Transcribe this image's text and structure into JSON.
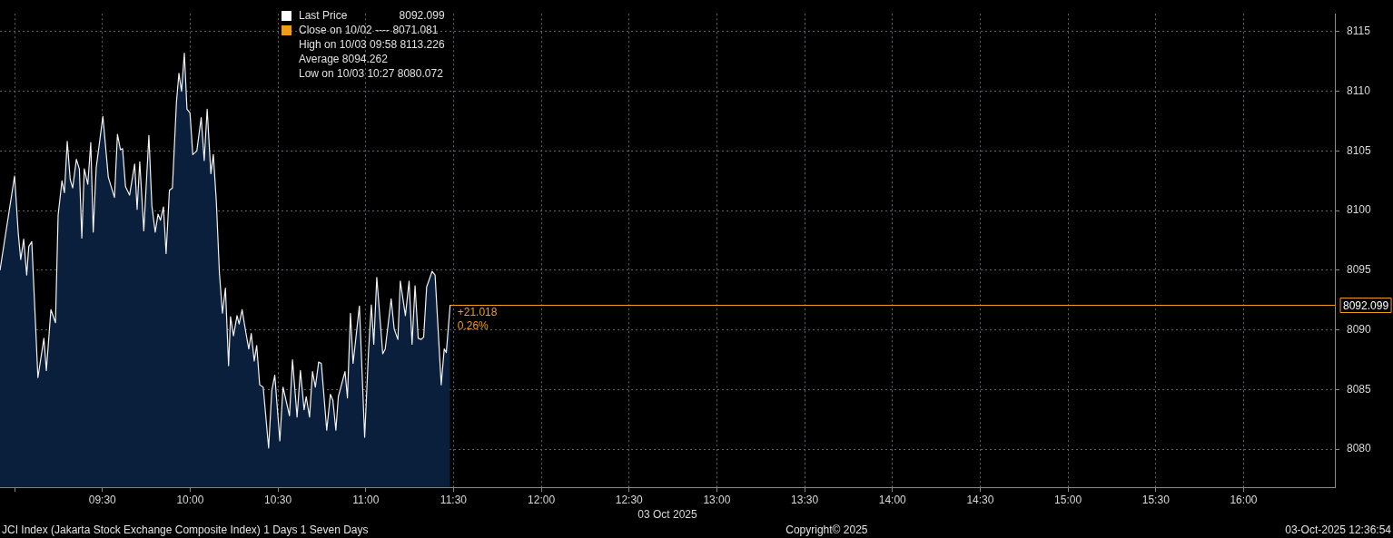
{
  "chart_data": {
    "type": "area",
    "xlabel": "03 Oct 2025",
    "legend": "top",
    "grid": true,
    "xlim": [
      8.917,
      16.52
    ],
    "ylim": [
      8076.8,
      8116.5
    ],
    "xticks": [
      {
        "value": 9,
        "label": null
      },
      {
        "value": 9.5,
        "label": "09:30"
      },
      {
        "value": 10,
        "label": "10:00"
      },
      {
        "value": 10.5,
        "label": "10:30"
      },
      {
        "value": 11,
        "label": "11:00"
      },
      {
        "value": 11.5,
        "label": "11:30"
      },
      {
        "value": 12,
        "label": "12:00"
      },
      {
        "value": 12.5,
        "label": "12:30"
      },
      {
        "value": 13,
        "label": "13:00"
      },
      {
        "value": 13.5,
        "label": "13:30"
      },
      {
        "value": 14,
        "label": "14:00"
      },
      {
        "value": 14.5,
        "label": "14:30"
      },
      {
        "value": 15,
        "label": "15:00"
      },
      {
        "value": 15.5,
        "label": "15:30"
      },
      {
        "value": 16,
        "label": "16:00"
      }
    ],
    "yticks": [
      8080,
      8085,
      8090,
      8095,
      8100,
      8105,
      8110,
      8115
    ],
    "series": [
      {
        "name": "Last Price",
        "color": "#0a1f3c",
        "x": [
          8.917,
          9.0,
          9.021,
          9.035,
          9.052,
          9.069,
          9.081,
          9.098,
          9.133,
          9.167,
          9.181,
          9.207,
          9.233,
          9.248,
          9.27,
          9.284,
          9.3,
          9.317,
          9.331,
          9.352,
          9.369,
          9.383,
          9.397,
          9.417,
          9.434,
          9.448,
          9.465,
          9.503,
          9.534,
          9.569,
          9.586,
          9.603,
          9.615,
          9.632,
          9.655,
          9.684,
          9.698,
          9.713,
          9.736,
          9.765,
          9.782,
          9.801,
          9.817,
          9.831,
          9.848,
          9.863,
          9.882,
          9.899,
          9.922,
          9.936,
          9.951,
          9.967,
          9.982,
          9.999,
          10.015,
          10.038,
          10.063,
          10.08,
          10.097,
          10.118,
          10.132,
          10.149,
          10.167,
          10.184,
          10.201,
          10.219,
          10.23,
          10.247,
          10.267,
          10.279,
          10.296,
          10.317,
          10.334,
          10.348,
          10.365,
          10.379,
          10.396,
          10.416,
          10.447,
          10.465,
          10.482,
          10.511,
          10.529,
          10.566,
          10.583,
          10.609,
          10.628,
          10.649,
          10.661,
          10.68,
          10.697,
          10.713,
          10.732,
          10.747,
          10.778,
          10.799,
          10.813,
          10.83,
          10.844,
          10.882,
          10.896,
          10.913,
          10.928,
          10.964,
          10.994,
          11.016,
          11.032,
          11.046,
          11.063,
          11.097,
          11.111,
          11.145,
          11.162,
          11.183,
          11.197,
          11.226,
          11.247,
          11.264,
          11.281,
          11.299,
          11.316,
          11.33,
          11.347,
          11.378,
          11.395,
          11.43,
          11.447,
          11.459,
          11.481
        ],
        "values": [
          8095.0,
          8102.9,
          8098.1,
          8095.9,
          8097.6,
          8094.6,
          8097.0,
          8097.4,
          8086.0,
          8089.3,
          8086.6,
          8091.7,
          8090.6,
          8099.6,
          8102.5,
          8101.5,
          8105.8,
          8102.6,
          8101.9,
          8104.3,
          8103.5,
          8097.7,
          8103.5,
          8102.2,
          8105.7,
          8098.2,
          8103.6,
          8107.9,
          8102.8,
          8101.1,
          8106.4,
          8105.1,
          8105.2,
          8102.0,
          8101.3,
          8103.9,
          8100.1,
          8104.1,
          8098.3,
          8106.3,
          8100.4,
          8098.2,
          8099.7,
          8099.2,
          8100.3,
          8096.4,
          8101.7,
          8101.9,
          8109.1,
          8111.5,
          8110.0,
          8113.2,
          8108.5,
          8108.2,
          8104.7,
          8105.0,
          8107.8,
          8104.2,
          8108.5,
          8103.1,
          8104.7,
          8100.8,
          8094.7,
          8091.4,
          8093.5,
          8087.0,
          8091.1,
          8089.5,
          8091.2,
          8090.5,
          8091.7,
          8089.8,
          8088.4,
          8089.7,
          8087.4,
          8088.7,
          8085.4,
          8085.2,
          8080.1,
          8084.9,
          8086.2,
          8080.7,
          8085.2,
          8082.8,
          8087.5,
          8082.7,
          8086.6,
          8083.3,
          8084.4,
          8082.7,
          8086.5,
          8085.2,
          8087.3,
          8087.2,
          8081.6,
          8084.6,
          8084.1,
          8081.6,
          8084.4,
          8086.5,
          8084.3,
          8091.4,
          8087.2,
          8092.0,
          8081.0,
          8088.2,
          8092.1,
          8088.8,
          8094.4,
          8088.0,
          8088.4,
          8092.6,
          8090.1,
          8089.2,
          8094.1,
          8091.2,
          8094.1,
          8088.8,
          8093.7,
          8089.3,
          8089.2,
          8089.4,
          8093.6,
          8094.9,
          8094.6,
          8085.4,
          8088.4,
          8088.1,
          8092.1
        ]
      }
    ],
    "ref_lines": [
      {
        "axis": "y",
        "value": 8092.099,
        "label": "8092.099",
        "color": "#f39c12"
      }
    ],
    "annotations": [
      "8092.099",
      "Close on 10/02 ---- 8071.081",
      "High on 10/03 09:58 8113.226",
      "Average 8094.262",
      "Low on 10/03 10:27 8080.072",
      {
        "text": "+21.018",
        "x": 11.481,
        "y": 8092.099
      },
      {
        "text": "0.26%",
        "x": 11.481,
        "y": 8092.099
      },
      "JCI Index (Jakarta Stock Exchange Composite Index) 1 Days 1 Seven Days",
      "Copyright© 2025",
      "03-Oct-2025 12:36:54"
    ]
  }
}
